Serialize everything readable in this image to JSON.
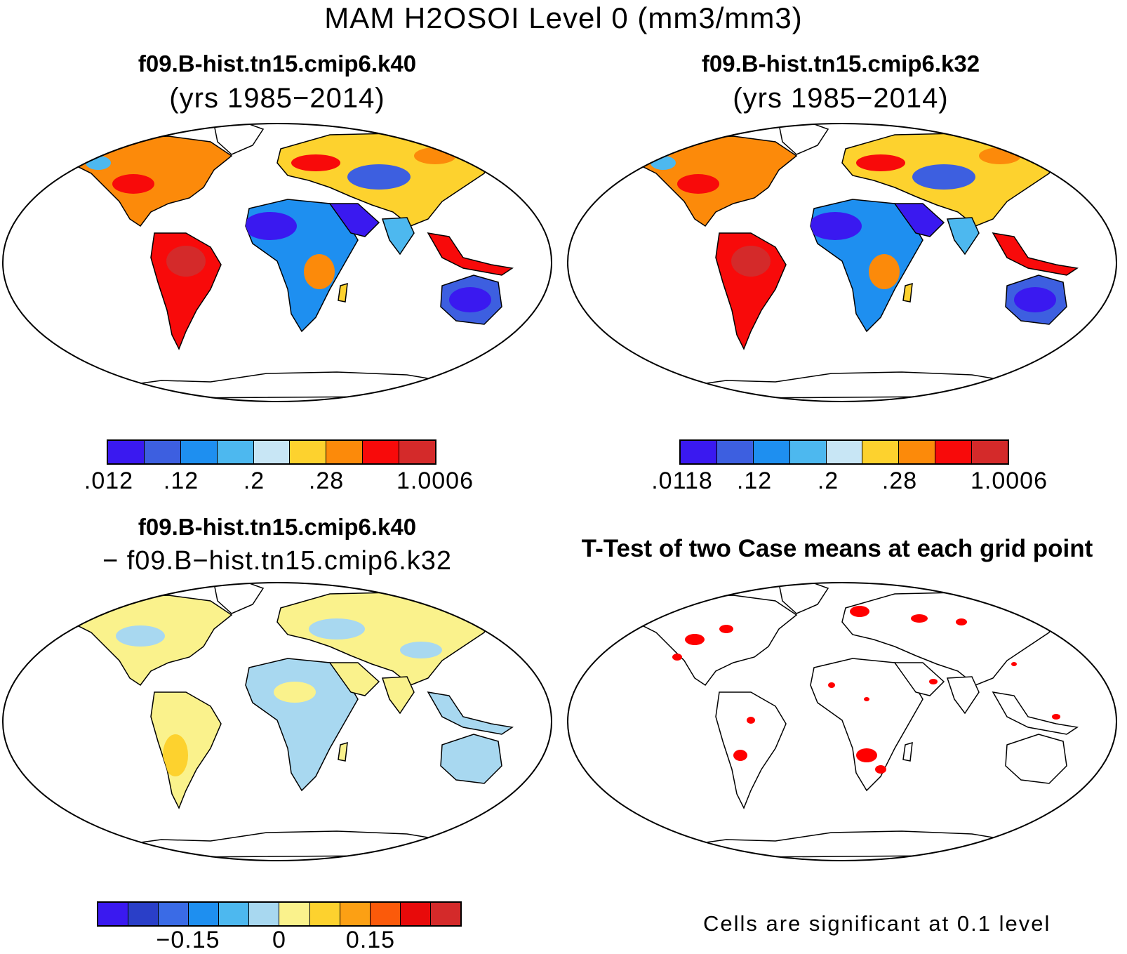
{
  "main_title": "MAM H2OSOI Level 0 (mm3/mm3)",
  "panels": [
    {
      "title": "f09.B-hist.tn15.cmip6.k40",
      "subtitle": "(yrs 1985−2014)"
    },
    {
      "title": "f09.B-hist.tn15.cmip6.k32",
      "subtitle": "(yrs 1985−2014)"
    },
    {
      "title": "f09.B-hist.tn15.cmip6.k40",
      "subtitle": "− f09.B−hist.tn15.cmip6.k32"
    },
    {
      "title": "T-Test of two Case means at each grid point",
      "subtitle": ""
    }
  ],
  "colors": {
    "abs_scale": [
      "#3a19f0",
      "#3d5fe0",
      "#1e8ff0",
      "#4db8ef",
      "#c8e6f5",
      "#fdd22e",
      "#fc8a0a",
      "#f80a0a",
      "#d42a2a"
    ],
    "diff_scale": [
      "#3a19f0",
      "#2a3fc8",
      "#3a6be6",
      "#1e8ff0",
      "#4db8ef",
      "#a8d8f0",
      "#faf28c",
      "#fdd22e",
      "#fca014",
      "#fb5a0a",
      "#e80a0a",
      "#d42a2a"
    ],
    "significant": "#ff0000",
    "coast": "#000000"
  },
  "colorbars": [
    {
      "labels": [
        ".012",
        ".12",
        ".2",
        ".28",
        "1.0006"
      ]
    },
    {
      "labels": [
        ".0118",
        ".12",
        ".2",
        ".28",
        "1.0006"
      ]
    },
    {
      "labels": [
        "−0.15",
        "0",
        "0.15"
      ]
    }
  ],
  "note": "Cells are significant at 0.1 level"
}
